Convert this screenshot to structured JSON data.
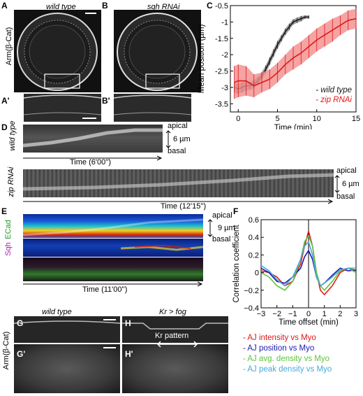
{
  "panels": {
    "A": "A",
    "B": "B",
    "C": "C",
    "A_prime": "A'",
    "B_prime": "B'",
    "D": "D",
    "E": "E",
    "F": "F",
    "G": "G",
    "H": "H",
    "G_prime": "G'",
    "H_prime": "H'"
  },
  "top_row": {
    "ylabel": "Arm(β-Cat)",
    "title_A": "wild type",
    "title_B": "sqh RNAi"
  },
  "panel_D": {
    "wt_side_label": "wild type",
    "zip_side_label": "zip RNAi",
    "wt_time_label": "Time (6'00'')",
    "zip_time_label": "Time (12'15'')",
    "apical": "apical",
    "scale": "6 µm",
    "basal": "basal"
  },
  "panel_E": {
    "ecad": "ECad",
    "sqh": "Sqh",
    "time_label": "Time (11'00'')",
    "apical": "apical",
    "scale": "9 µm",
    "basal": "basal"
  },
  "panel_GH": {
    "ylabel": "Arm(β-Cat)",
    "title_G": "wild type",
    "title_H": "Kr > fog",
    "kr_pattern": "Kr pattern"
  },
  "legend_F": {
    "items": [
      {
        "label": "- AJ intensity vs Myo",
        "color": "#e01818"
      },
      {
        "label": "- AJ position vs Myo",
        "color": "#1a1ab0"
      },
      {
        "label": "- AJ avg. density vs Myo",
        "color": "#5fc43c"
      },
      {
        "label": "- AJ peak density vs Myo",
        "color": "#4aa8d8"
      }
    ]
  },
  "chart_data": [
    {
      "type": "line",
      "panel": "C",
      "xlabel": "Time (min)",
      "ylabel": "Mean position (µm)",
      "xlim": [
        -1,
        15
      ],
      "ylim": [
        -3.75,
        -0.5
      ],
      "xticks": [
        0,
        5,
        10,
        15
      ],
      "yticks": [
        -3.5,
        -3,
        -2.5,
        -2,
        -1.5,
        -1,
        -0.5
      ],
      "legend_position": "bottom-right",
      "series": [
        {
          "name": "wild type",
          "color": "#1a1a1a",
          "band_color": "#8a8a8a",
          "x": [
            -0.5,
            0,
            0.5,
            1,
            1.5,
            2,
            2.5,
            3,
            3.5,
            4,
            4.5,
            5,
            5.5,
            6,
            6.5,
            7,
            7.5,
            8,
            8.5,
            9
          ],
          "y": [
            -3.0,
            -3.05,
            -3.0,
            -2.95,
            -2.95,
            -2.9,
            -2.8,
            -2.65,
            -2.45,
            -2.2,
            -1.95,
            -1.7,
            -1.5,
            -1.3,
            -1.15,
            -1.0,
            -0.95,
            -0.9,
            -0.85,
            -0.85
          ],
          "err": [
            0.15,
            0.15,
            0.15,
            0.15,
            0.12,
            0.12,
            0.12,
            0.12,
            0.12,
            0.12,
            0.12,
            0.12,
            0.1,
            0.1,
            0.1,
            0.08,
            0.08,
            0.08,
            0.05,
            0.05
          ]
        },
        {
          "name": "zip RNAi",
          "color": "#e01818",
          "band_color": "#f28c8c",
          "x": [
            -0.5,
            0,
            1,
            2,
            3,
            4,
            5,
            6,
            7,
            8,
            9,
            10,
            11,
            12,
            13,
            14,
            15
          ],
          "y": [
            -2.85,
            -2.8,
            -2.8,
            -2.95,
            -2.85,
            -2.75,
            -2.55,
            -2.3,
            -2.1,
            -1.95,
            -1.75,
            -1.55,
            -1.4,
            -1.25,
            -1.1,
            -0.95,
            -0.9
          ],
          "err": [
            0.5,
            0.5,
            0.45,
            0.35,
            0.3,
            0.3,
            0.3,
            0.3,
            0.35,
            0.35,
            0.35,
            0.35,
            0.35,
            0.35,
            0.3,
            0.3,
            0.3
          ]
        }
      ],
      "legend": [
        "- wild type",
        "- zip RNAi"
      ]
    },
    {
      "type": "line",
      "panel": "F",
      "xlabel": "Time offset (min)",
      "ylabel": "Correlation coefficient",
      "xlim": [
        -3,
        3
      ],
      "ylim": [
        -0.4,
        0.6
      ],
      "xticks": [
        -3,
        -2,
        -1,
        0,
        1,
        2,
        3
      ],
      "yticks": [
        -0.4,
        -0.2,
        0,
        0.2,
        0.4,
        0.6
      ],
      "xtick_labels": [
        "−3",
        "−2",
        "−1",
        "0",
        "1",
        "2",
        "3"
      ],
      "ytick_labels": [
        "−0.4",
        "−0.2",
        "0",
        "0.2",
        "0.4",
        "0.6"
      ],
      "series": [
        {
          "name": "AJ intensity vs Myo",
          "color": "#e01818",
          "x": [
            -3,
            -2.5,
            -2,
            -1.5,
            -1,
            -0.5,
            -0.25,
            0,
            0.25,
            0.5,
            0.75,
            1,
            1.5,
            2,
            2.5,
            3
          ],
          "y": [
            0.02,
            0.0,
            -0.05,
            -0.15,
            -0.1,
            0.1,
            0.3,
            0.47,
            0.3,
            0.0,
            -0.2,
            -0.25,
            -0.15,
            0.0,
            0.05,
            0.02
          ]
        },
        {
          "name": "AJ position vs Myo",
          "color": "#1a1ab0",
          "x": [
            -3,
            -2.5,
            -2,
            -1.5,
            -1,
            -0.5,
            -0.25,
            0,
            0.25,
            0.5,
            0.75,
            1,
            1.5,
            2,
            2.5,
            3
          ],
          "y": [
            0.05,
            0.0,
            -0.1,
            -0.12,
            -0.05,
            0.05,
            0.18,
            0.25,
            0.15,
            -0.05,
            -0.15,
            -0.12,
            -0.03,
            0.05,
            0.02,
            0.03
          ]
        },
        {
          "name": "AJ avg. density vs Myo",
          "color": "#5fc43c",
          "x": [
            -3,
            -2.5,
            -2,
            -1.5,
            -1,
            -0.5,
            -0.25,
            0,
            0.25,
            0.5,
            0.75,
            1,
            1.5,
            2,
            2.5,
            3
          ],
          "y": [
            0.0,
            -0.05,
            -0.15,
            -0.2,
            -0.1,
            0.15,
            0.35,
            0.42,
            0.3,
            0.0,
            -0.15,
            -0.2,
            -0.1,
            0.02,
            0.05,
            0.0
          ]
        },
        {
          "name": "AJ peak density vs Myo",
          "color": "#4aa8d8",
          "x": [
            -3,
            -2.5,
            -2,
            -1.5,
            -1,
            -0.5,
            -0.25,
            0,
            0.25,
            0.5,
            0.75,
            1,
            1.5,
            2,
            2.5,
            3
          ],
          "y": [
            0.08,
            0.02,
            -0.08,
            -0.15,
            -0.05,
            0.15,
            0.3,
            0.35,
            0.2,
            -0.05,
            -0.15,
            -0.12,
            -0.05,
            0.03,
            0.05,
            0.05
          ]
        }
      ]
    }
  ]
}
